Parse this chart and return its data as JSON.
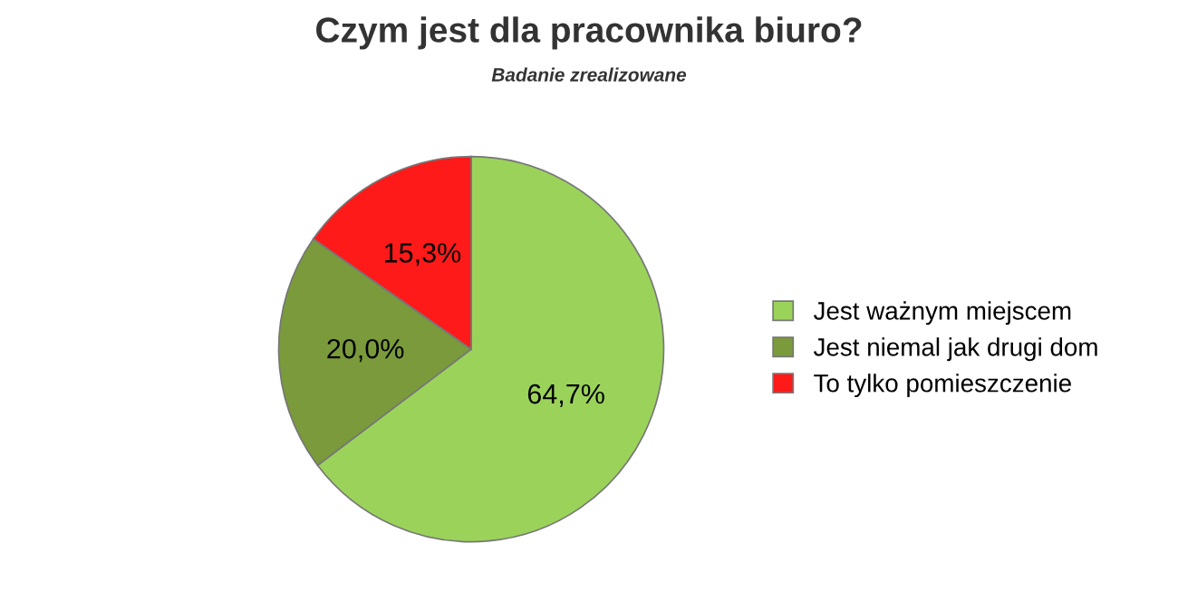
{
  "chart_data": {
    "type": "pie",
    "title": "Czym jest dla pracownika biuro?",
    "subtitle": "Badanie zrealizowane",
    "categories": [
      "Jest ważnym miejscem",
      "Jest niemal jak drugi dom",
      "To tylko pomieszczenie"
    ],
    "values": [
      64.7,
      20.0,
      15.3
    ],
    "value_labels": [
      "64,7%",
      "20,0%",
      "15,3%"
    ],
    "colors": [
      "#9bd35a",
      "#7a9a3c",
      "#ff1a1a"
    ],
    "legend": "right"
  }
}
